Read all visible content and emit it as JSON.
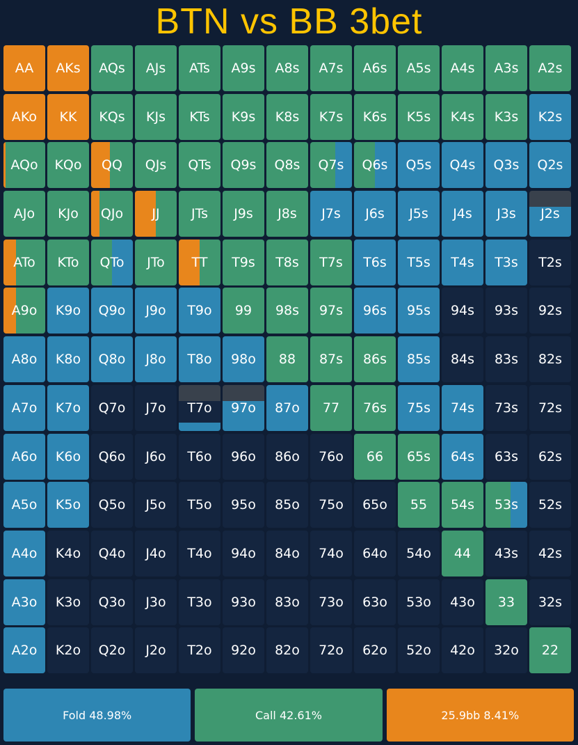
{
  "title": "BTN vs BB 3bet",
  "colors": {
    "fold": "#2e86b3",
    "call": "#3f9870",
    "raise": "#e8861c",
    "none": "#14253f",
    "gray": "#39414c"
  },
  "grid": {
    "rows": [
      [
        "AA",
        "AKs",
        "AQs",
        "AJs",
        "ATs",
        "A9s",
        "A8s",
        "A7s",
        "A6s",
        "A5s",
        "A4s",
        "A3s",
        "A2s"
      ],
      [
        "AKo",
        "KK",
        "KQs",
        "KJs",
        "KTs",
        "K9s",
        "K8s",
        "K7s",
        "K6s",
        "K5s",
        "K4s",
        "K3s",
        "K2s"
      ],
      [
        "AQo",
        "KQo",
        "QQ",
        "QJs",
        "QTs",
        "Q9s",
        "Q8s",
        "Q7s",
        "Q6s",
        "Q5s",
        "Q4s",
        "Q3s",
        "Q2s"
      ],
      [
        "AJo",
        "KJo",
        "QJo",
        "JJ",
        "JTs",
        "J9s",
        "J8s",
        "J7s",
        "J6s",
        "J5s",
        "J4s",
        "J3s",
        "J2s"
      ],
      [
        "ATo",
        "KTo",
        "QTo",
        "JTo",
        "TT",
        "T9s",
        "T8s",
        "T7s",
        "T6s",
        "T5s",
        "T4s",
        "T3s",
        "T2s"
      ],
      [
        "A9o",
        "K9o",
        "Q9o",
        "J9o",
        "T9o",
        "99",
        "98s",
        "97s",
        "96s",
        "95s",
        "94s",
        "93s",
        "92s"
      ],
      [
        "A8o",
        "K8o",
        "Q8o",
        "J8o",
        "T8o",
        "98o",
        "88",
        "87s",
        "86s",
        "85s",
        "84s",
        "83s",
        "82s"
      ],
      [
        "A7o",
        "K7o",
        "Q7o",
        "J7o",
        "T7o",
        "97o",
        "87o",
        "77",
        "76s",
        "75s",
        "74s",
        "73s",
        "72s"
      ],
      [
        "A6o",
        "K6o",
        "Q6o",
        "J6o",
        "T6o",
        "96o",
        "86o",
        "76o",
        "66",
        "65s",
        "64s",
        "63s",
        "62s"
      ],
      [
        "A5o",
        "K5o",
        "Q5o",
        "J5o",
        "T5o",
        "95o",
        "85o",
        "75o",
        "65o",
        "55",
        "54s",
        "53s",
        "52s"
      ],
      [
        "A4o",
        "K4o",
        "Q4o",
        "J4o",
        "T4o",
        "94o",
        "84o",
        "74o",
        "64o",
        "54o",
        "44",
        "43s",
        "42s"
      ],
      [
        "A3o",
        "K3o",
        "Q3o",
        "J3o",
        "T3o",
        "93o",
        "83o",
        "73o",
        "63o",
        "53o",
        "43o",
        "33",
        "32s"
      ],
      [
        "A2o",
        "K2o",
        "Q2o",
        "J2o",
        "T2o",
        "92o",
        "82o",
        "72o",
        "62o",
        "52o",
        "42o",
        "32o",
        "22"
      ]
    ],
    "actions": [
      [
        "R",
        "R",
        "C",
        "C",
        "C",
        "C",
        "C",
        "C",
        "C",
        "C",
        "C",
        "C",
        "C"
      ],
      [
        "R",
        "R",
        "C",
        "C",
        "C",
        "C",
        "C",
        "C",
        "C",
        "C",
        "C",
        "C",
        "F"
      ],
      [
        "r5c95",
        "C",
        "r45c55",
        "C",
        "C",
        "C",
        "C",
        "c60f40",
        "c50f50",
        "F",
        "F",
        "F",
        "F"
      ],
      [
        "C",
        "C",
        "r20c80",
        "r50c50",
        "C",
        "C",
        "C",
        "F",
        "F",
        "F",
        "F",
        "F",
        "gray35f65"
      ],
      [
        "r30c70",
        "C",
        "c50f50",
        "C",
        "r50c50",
        "C",
        "C",
        "C",
        "F",
        "F",
        "F",
        "F",
        "N"
      ],
      [
        "r30c70",
        "F",
        "F",
        "F",
        "F",
        "C",
        "C",
        "C",
        "F",
        "F",
        "N",
        "N",
        "N"
      ],
      [
        "F",
        "F",
        "F",
        "F",
        "F",
        "F",
        "C",
        "C",
        "C",
        "F",
        "N",
        "N",
        "N"
      ],
      [
        "F",
        "F",
        "N",
        "N",
        "gray35fb35",
        "gray35f65",
        "F",
        "C",
        "C",
        "F",
        "F",
        "N",
        "N"
      ],
      [
        "F",
        "F",
        "N",
        "N",
        "N",
        "N",
        "N",
        "N",
        "C",
        "C",
        "F",
        "N",
        "N"
      ],
      [
        "F",
        "F",
        "N",
        "N",
        "N",
        "N",
        "N",
        "N",
        "N",
        "C",
        "C",
        "c60f40",
        "N"
      ],
      [
        "F",
        "N",
        "N",
        "N",
        "N",
        "N",
        "N",
        "N",
        "N",
        "N",
        "C",
        "N",
        "N"
      ],
      [
        "F",
        "N",
        "N",
        "N",
        "N",
        "N",
        "N",
        "N",
        "N",
        "N",
        "N",
        "C",
        "N"
      ],
      [
        "F",
        "N",
        "N",
        "N",
        "N",
        "N",
        "N",
        "N",
        "N",
        "N",
        "N",
        "N",
        "C"
      ]
    ]
  },
  "summary": {
    "fold_label": "Fold 48.98%",
    "call_label": "Call 42.61%",
    "raise_label": "25.9bb 8.41%"
  }
}
